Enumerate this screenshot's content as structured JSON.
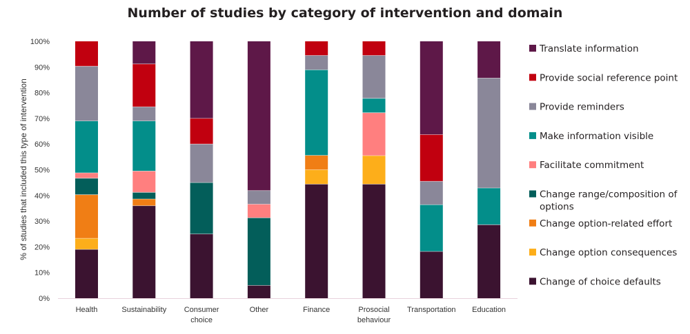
{
  "chart_data": {
    "type": "bar",
    "stacked": true,
    "title": "Number of studies by category of intervention and domain",
    "ylabel": "% of studies that included this type of intervention",
    "xlabel": "",
    "ylim": [
      0,
      100
    ],
    "yticks": [
      "0%",
      "10%",
      "20%",
      "30%",
      "40%",
      "50%",
      "60%",
      "70%",
      "80%",
      "90%",
      "100%"
    ],
    "grid": false,
    "legend_position": "right",
    "categories": [
      [
        "Health"
      ],
      [
        "Sustainability"
      ],
      [
        "Consumer",
        "choice"
      ],
      [
        "Other"
      ],
      [
        "Finance"
      ],
      [
        "Prosocial",
        "behaviour"
      ],
      [
        "Transportation"
      ],
      [
        "Education"
      ]
    ],
    "series": [
      {
        "name": "Change of choice defaults",
        "name_lines": [
          "Change of choice defaults"
        ],
        "color": "#3b1330",
        "values": [
          19,
          36,
          25,
          5,
          44.4,
          44.4,
          18.2,
          28.6
        ]
      },
      {
        "name": "Change option consequences",
        "name_lines": [
          "Change option consequences"
        ],
        "color": "#fdae1a",
        "values": [
          4.3,
          0,
          0,
          0,
          5.6,
          11.1,
          0,
          0
        ]
      },
      {
        "name": "Change option-related effort",
        "name_lines": [
          "Change option-related effort"
        ],
        "color": "#f07e15",
        "values": [
          17,
          2.6,
          0,
          0,
          5.6,
          0,
          0,
          0
        ]
      },
      {
        "name": "Change range/composition of options",
        "name_lines": [
          "Change range/composition of",
          "options"
        ],
        "color": "#035e5a",
        "values": [
          6.4,
          2.6,
          20,
          26.3,
          0,
          0,
          0,
          0
        ]
      },
      {
        "name": "Facilitate commitment",
        "name_lines": [
          "Facilitate commitment"
        ],
        "color": "#ff7f7f",
        "values": [
          2.1,
          8.3,
          0,
          5.3,
          0,
          16.7,
          0,
          0
        ]
      },
      {
        "name": "Make information visible",
        "name_lines": [
          "Make information visible"
        ],
        "color": "#038e8a",
        "values": [
          20.2,
          19.5,
          0,
          0,
          33.3,
          5.6,
          18.2,
          14.3
        ]
      },
      {
        "name": "Provide reminders",
        "name_lines": [
          "Provide reminders"
        ],
        "color": "#8a8799",
        "values": [
          21.3,
          5.5,
          15,
          5.3,
          5.6,
          16.7,
          9.1,
          42.8
        ]
      },
      {
        "name": "Provide social reference point",
        "name_lines": [
          "Provide social reference point"
        ],
        "color": "#c1000f",
        "values": [
          9.7,
          16.7,
          10,
          0,
          5.5,
          5.5,
          18.2,
          0
        ]
      },
      {
        "name": "Translate information",
        "name_lines": [
          "Translate information"
        ],
        "color": "#5e1848",
        "values": [
          0,
          8.8,
          30,
          58.1,
          0,
          0,
          36.3,
          14.3
        ]
      }
    ]
  }
}
